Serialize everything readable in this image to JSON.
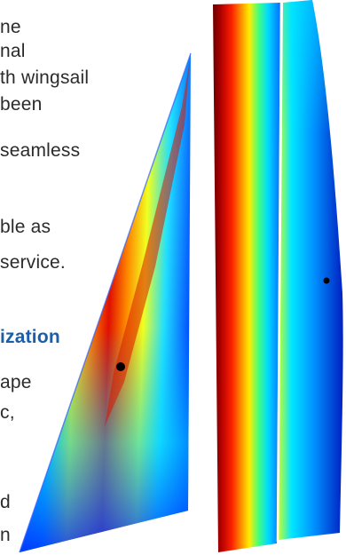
{
  "text_fragments": {
    "line_1": "ne",
    "line_2": "nal",
    "line_3": "th wingsail",
    "line_4": "been",
    "line_5": "seamless",
    "line_6": "ble as",
    "line_7": "service.",
    "heading": "ization",
    "line_8": "ape",
    "line_9": "c,",
    "line_10": "d",
    "line_11": "n"
  },
  "colors": {
    "heading": "#1a5fa8",
    "body_text": "#2b2b2b",
    "jet_dark_red": "#7a0000",
    "jet_red": "#e01000",
    "jet_orange": "#ff7a00",
    "jet_yellow": "#ffe600",
    "jet_cyan": "#00d8ff",
    "jet_blue": "#0055ff",
    "jet_dark_blue": "#0010a0",
    "marker": "#000000"
  },
  "icons": {
    "left_sail": "triangular-sail-pressure-map",
    "right_sail": "wingsail-pressure-map",
    "markers": "black-dot-marker"
  }
}
